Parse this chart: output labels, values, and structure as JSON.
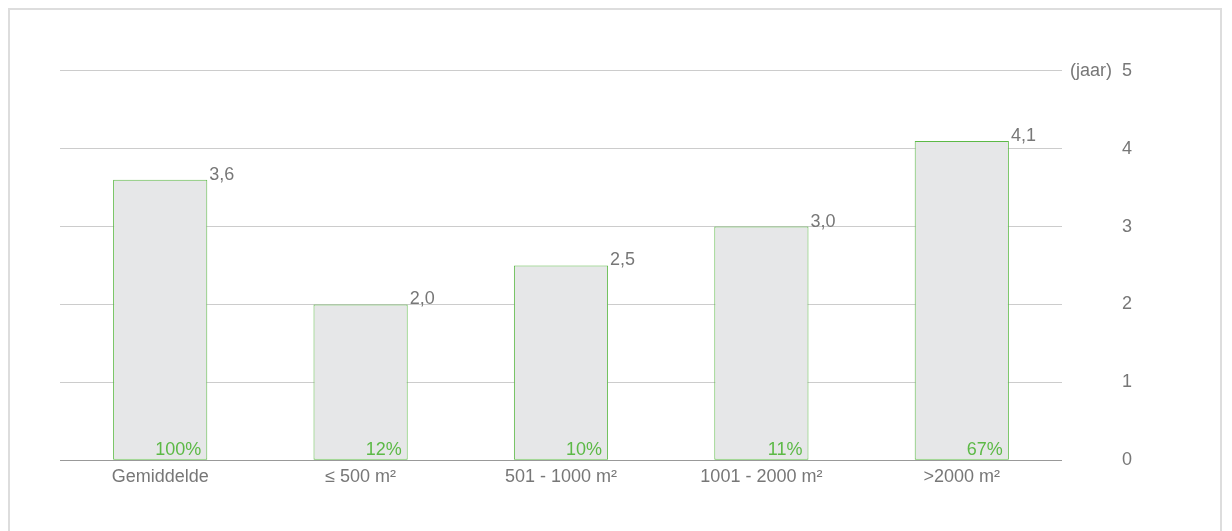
{
  "chart_data": {
    "type": "bar",
    "ylabel": "(jaar)",
    "categories": [
      "Gemiddelde",
      "≤ 500 m²",
      "501 - 1000 m²",
      "1001 - 2000 m²",
      ">2000 m²"
    ],
    "values": [
      3.6,
      2.0,
      2.5,
      3.0,
      4.1
    ],
    "value_labels": [
      "3,6",
      "2,0",
      "2,5",
      "3,0",
      "4,1"
    ],
    "color": "#e6e7e8",
    "ylim": [
      0,
      5
    ],
    "yticks": [
      0,
      1,
      2,
      3,
      4,
      5
    ],
    "grid": "y",
    "annotations": [
      {
        "text": "100%",
        "x": "Gemiddelde",
        "y": 0
      },
      {
        "text": "12%",
        "x": "≤ 500 m²",
        "y": 0
      },
      {
        "text": "10%",
        "x": "501 - 1000 m²",
        "y": 0
      },
      {
        "text": "11%",
        "x": "1001 - 2000 m²",
        "y": 0
      },
      {
        "text": "67%",
        "x": ">2000 m²",
        "y": 0
      }
    ]
  }
}
